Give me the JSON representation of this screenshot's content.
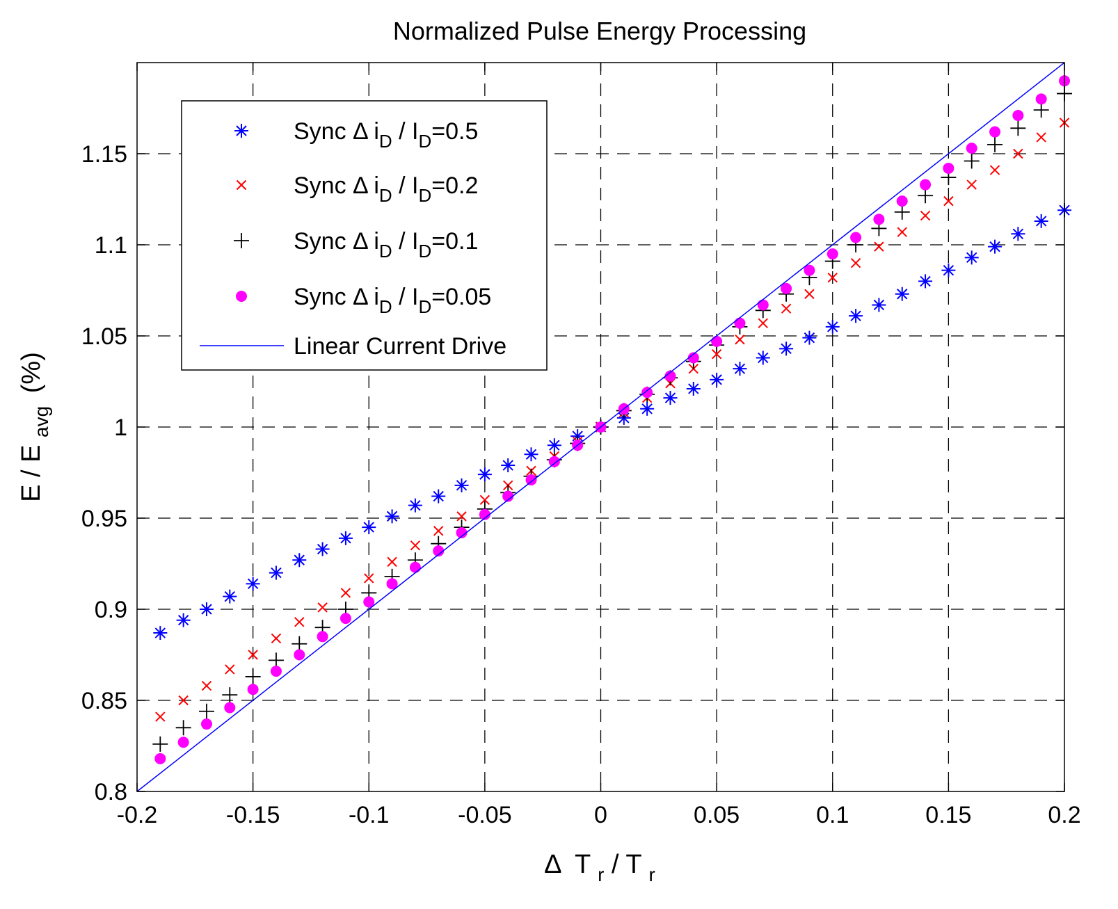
{
  "chart_data": {
    "type": "scatter",
    "title": "Normalized Pulse Energy Processing",
    "xlabel": {
      "delta": "Δ",
      "t1": "T",
      "s1": "r",
      "slash": "/ ",
      "t2": "T",
      "s2": "r"
    },
    "ylabel": {
      "e": "E / E",
      "sub": "avg",
      "unit": "(%)"
    },
    "xlim": [
      -0.2,
      0.2
    ],
    "ylim": [
      0.8,
      1.2
    ],
    "xticks": [
      -0.2,
      -0.15,
      -0.1,
      -0.05,
      0,
      0.05,
      0.1,
      0.15,
      0.2
    ],
    "xtick_labels": [
      "-0.2",
      "-0.15",
      "-0.1",
      "-0.05",
      "0",
      "0.05",
      "0.1",
      "0.15",
      "0.2"
    ],
    "yticks": [
      0.8,
      0.85,
      0.9,
      0.95,
      1.0,
      1.05,
      1.1,
      1.15
    ],
    "ytick_labels": [
      "0.8",
      "0.85",
      "0.9",
      "0.95",
      "1",
      "1.05",
      "1.1",
      "1.15"
    ],
    "grid": "dashed",
    "legend_position": "top-left",
    "x": [
      -0.19,
      -0.18,
      -0.17,
      -0.16,
      -0.15,
      -0.14,
      -0.13,
      -0.12,
      -0.11,
      -0.1,
      -0.09,
      -0.08,
      -0.07,
      -0.06,
      -0.05,
      -0.04,
      -0.03,
      -0.02,
      -0.01,
      0,
      0.01,
      0.02,
      0.03,
      0.04,
      0.05,
      0.06,
      0.07,
      0.08,
      0.09,
      0.1,
      0.11,
      0.12,
      0.13,
      0.14,
      0.15,
      0.16,
      0.17,
      0.18,
      0.19,
      0.2
    ],
    "series": [
      {
        "name": "Sync Δ i_D / I_D=0.5",
        "legend": {
          "pre": "Sync Δ i",
          "sub1": "D",
          "mid": " / I",
          "sub2": "D",
          "post": "=0.5"
        },
        "marker": "asterisk",
        "color": "#0000ff",
        "values": [
          0.887,
          0.894,
          0.9,
          0.907,
          0.914,
          0.92,
          0.927,
          0.933,
          0.939,
          0.945,
          0.951,
          0.957,
          0.962,
          0.968,
          0.974,
          0.979,
          0.985,
          0.99,
          0.995,
          1.0,
          1.005,
          1.01,
          1.016,
          1.021,
          1.026,
          1.032,
          1.038,
          1.043,
          1.049,
          1.055,
          1.061,
          1.067,
          1.073,
          1.08,
          1.086,
          1.093,
          1.099,
          1.106,
          1.113,
          1.119
        ]
      },
      {
        "name": "Sync Δ i_D / I_D=0.2",
        "legend": {
          "pre": "Sync Δ i",
          "sub1": "D",
          "mid": " / I",
          "sub2": "D",
          "post": "=0.2"
        },
        "marker": "x",
        "color": "#ff0000",
        "values": [
          0.841,
          0.85,
          0.858,
          0.867,
          0.875,
          0.884,
          0.893,
          0.901,
          0.909,
          0.917,
          0.926,
          0.935,
          0.943,
          0.951,
          0.96,
          0.968,
          0.976,
          0.984,
          0.992,
          1.0,
          1.008,
          1.016,
          1.024,
          1.032,
          1.04,
          1.048,
          1.057,
          1.065,
          1.073,
          1.082,
          1.09,
          1.099,
          1.107,
          1.116,
          1.124,
          1.133,
          1.141,
          1.15,
          1.159,
          1.167
        ]
      },
      {
        "name": "Sync Δ i_D / I_D=0.1",
        "legend": {
          "pre": "Sync Δ i",
          "sub1": "D",
          "mid": " / I",
          "sub2": "D",
          "post": "=0.1"
        },
        "marker": "plus",
        "color": "#000000",
        "values": [
          0.826,
          0.835,
          0.844,
          0.853,
          0.863,
          0.872,
          0.881,
          0.89,
          0.9,
          0.909,
          0.918,
          0.927,
          0.936,
          0.945,
          0.955,
          0.964,
          0.973,
          0.982,
          0.991,
          1.0,
          1.009,
          1.018,
          1.027,
          1.036,
          1.045,
          1.055,
          1.064,
          1.073,
          1.082,
          1.091,
          1.1,
          1.109,
          1.118,
          1.127,
          1.137,
          1.146,
          1.155,
          1.164,
          1.174,
          1.183
        ]
      },
      {
        "name": "Sync Δ i_D / I_D=0.05",
        "legend": {
          "pre": "Sync Δ i",
          "sub1": "D",
          "mid": " / I",
          "sub2": "D",
          "post": "=0.05"
        },
        "marker": "dot",
        "color": "#ff00ff",
        "values": [
          0.818,
          0.827,
          0.837,
          0.846,
          0.856,
          0.866,
          0.875,
          0.885,
          0.895,
          0.904,
          0.914,
          0.923,
          0.932,
          0.942,
          0.952,
          0.962,
          0.971,
          0.981,
          0.99,
          1.0,
          1.01,
          1.019,
          1.028,
          1.038,
          1.047,
          1.057,
          1.067,
          1.076,
          1.086,
          1.095,
          1.104,
          1.114,
          1.124,
          1.133,
          1.142,
          1.153,
          1.162,
          1.171,
          1.18,
          1.19
        ]
      },
      {
        "name": "Linear Current Drive",
        "legend": {
          "pre": "Linear Current Drive"
        },
        "marker": "line",
        "color": "#0000ff",
        "x": [
          -0.2,
          0.2
        ],
        "values": [
          0.8,
          1.2
        ]
      }
    ]
  }
}
